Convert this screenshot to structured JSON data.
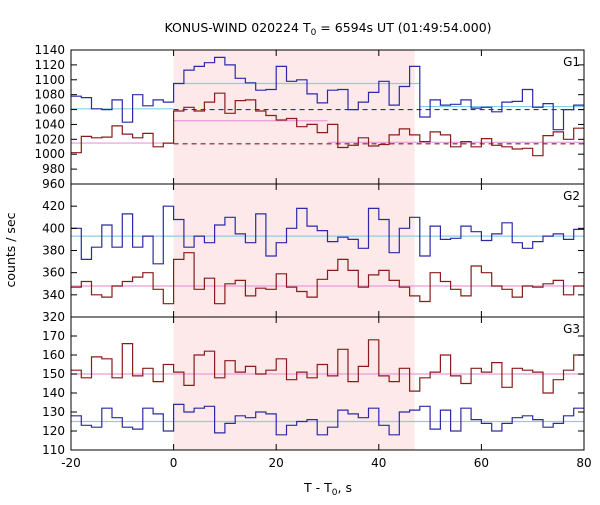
{
  "chart_data": {
    "type": "line",
    "title_parts": [
      "KONUS-WIND 020224 T",
      "0",
      " = 6594s UT (01:49:54.000)"
    ],
    "xlabel_parts": [
      "T - T",
      "0",
      ", s"
    ],
    "ylabel": "counts / sec",
    "xlim": [
      -20,
      80
    ],
    "xticks": [
      "-20",
      "0",
      "20",
      "40",
      "60",
      "80"
    ],
    "shaded_interval": [
      0,
      47
    ],
    "colors": {
      "shade": "#fde9ea",
      "blue": "#2a2aa8",
      "red": "#8b1a1a",
      "cyan": "#86cfe8",
      "pink": "#e89ad8"
    },
    "panels": [
      {
        "label": "G1",
        "ylim": [
          960,
          1140
        ],
        "yticks": [
          960,
          980,
          1000,
          1020,
          1040,
          1060,
          1080,
          1100,
          1120,
          1140
        ],
        "bin_edges": [
          -20,
          -18,
          -16,
          -14,
          -12,
          -10,
          -8,
          -6,
          -4,
          -2,
          0,
          2,
          4,
          6,
          8,
          10,
          12,
          14,
          16,
          18,
          20,
          22,
          24,
          26,
          28,
          30,
          32,
          34,
          36,
          38,
          40,
          42,
          44,
          46,
          48,
          50,
          52,
          54,
          56,
          58,
          60,
          62,
          64,
          66,
          68,
          70,
          72,
          74,
          76,
          78,
          80
        ],
        "series": [
          {
            "color_key": "blue",
            "values": [
              1078,
              1076,
              1061,
              1060,
              1073,
              1043,
              1080,
              1065,
              1073,
              1070,
              1095,
              1113,
              1118,
              1123,
              1130,
              1120,
              1102,
              1096,
              1086,
              1087,
              1118,
              1098,
              1100,
              1081,
              1069,
              1086,
              1087,
              1060,
              1070,
              1083,
              1098,
              1066,
              1091,
              1118,
              1050,
              1073,
              1066,
              1067,
              1073,
              1062,
              1063,
              1057,
              1070,
              1071,
              1087,
              1063,
              1068,
              1033,
              1060,
              1066
            ]
          },
          {
            "color_key": "red",
            "values": [
              1002,
              1024,
              1022,
              1023,
              1038,
              1027,
              1022,
              1028,
              1010,
              1015,
              1058,
              1063,
              1058,
              1070,
              1082,
              1055,
              1072,
              1073,
              1058,
              1052,
              1046,
              1048,
              1037,
              1040,
              1029,
              1040,
              1009,
              1012,
              1022,
              1011,
              1013,
              1026,
              1034,
              1026,
              1017,
              1030,
              1026,
              1010,
              1017,
              1010,
              1021,
              1012,
              1010,
              1007,
              1008,
              998,
              1025,
              1030,
              1020,
              1035
            ]
          }
        ],
        "means": [
          {
            "color_key": "cyan",
            "style": "solid",
            "x_range": [
              -20,
              0
            ],
            "y": 1061
          },
          {
            "color_key": "cyan",
            "style": "solid",
            "x_range": [
              0,
              48
            ],
            "y": 1095
          },
          {
            "color_key": "cyan",
            "style": "solid",
            "x_range": [
              48,
              80
            ],
            "y": 1064
          },
          {
            "color_key": "pink",
            "style": "solid",
            "x_range": [
              -20,
              0
            ],
            "y": 1015
          },
          {
            "color_key": "pink",
            "style": "solid",
            "x_range": [
              0,
              30
            ],
            "y": 1045
          },
          {
            "color_key": "pink",
            "style": "solid",
            "x_range": [
              30,
              80
            ],
            "y": 1016
          },
          {
            "color_key": "blue",
            "style": "dashed",
            "x_range": [
              0,
              80
            ],
            "y": 1060
          },
          {
            "color_key": "red",
            "style": "dashed",
            "x_range": [
              0,
              80
            ],
            "y": 1014
          }
        ]
      },
      {
        "label": "G2",
        "ylim": [
          320,
          440
        ],
        "yticks": [
          320,
          340,
          360,
          380,
          400,
          420
        ],
        "bin_edges": [
          -20,
          -18,
          -16,
          -14,
          -12,
          -10,
          -8,
          -6,
          -4,
          -2,
          0,
          2,
          4,
          6,
          8,
          10,
          12,
          14,
          16,
          18,
          20,
          22,
          24,
          26,
          28,
          30,
          32,
          34,
          36,
          38,
          40,
          42,
          44,
          46,
          48,
          50,
          52,
          54,
          56,
          58,
          60,
          62,
          64,
          66,
          68,
          70,
          72,
          74,
          76,
          78,
          80
        ],
        "series": [
          {
            "color_key": "blue",
            "values": [
              400,
              372,
              383,
              403,
              383,
              413,
              383,
              393,
              368,
              420,
              408,
              383,
              393,
              387,
              403,
              410,
              395,
              387,
              413,
              375,
              387,
              400,
              418,
              402,
              398,
              388,
              392,
              390,
              382,
              418,
              408,
              378,
              400,
              410,
              375,
              402,
              390,
              391,
              402,
              397,
              389,
              395,
              405,
              387,
              382,
              388,
              393,
              395,
              390,
              399
            ]
          },
          {
            "color_key": "red",
            "values": [
              347,
              352,
              340,
              338,
              348,
              352,
              356,
              360,
              345,
              332,
              372,
              378,
              345,
              355,
              332,
              350,
              353,
              339,
              346,
              345,
              359,
              347,
              343,
              338,
              354,
              362,
              372,
              362,
              347,
              358,
              362,
              353,
              347,
              339,
              334,
              360,
              352,
              345,
              339,
              366,
              360,
              348,
              345,
              338,
              348,
              347,
              350,
              353,
              340,
              348
            ]
          }
        ],
        "means": [
          {
            "color_key": "cyan",
            "style": "solid",
            "x_range": [
              -20,
              80
            ],
            "y": 393
          },
          {
            "color_key": "pink",
            "style": "solid",
            "x_range": [
              -20,
              80
            ],
            "y": 348
          }
        ]
      },
      {
        "label": "G3",
        "ylim": [
          110,
          180
        ],
        "yticks": [
          110,
          120,
          130,
          140,
          150,
          160,
          170
        ],
        "bin_edges": [
          -20,
          -18,
          -16,
          -14,
          -12,
          -10,
          -8,
          -6,
          -4,
          -2,
          0,
          2,
          4,
          6,
          8,
          10,
          12,
          14,
          16,
          18,
          20,
          22,
          24,
          26,
          28,
          30,
          32,
          34,
          36,
          38,
          40,
          42,
          44,
          46,
          48,
          50,
          52,
          54,
          56,
          58,
          60,
          62,
          64,
          66,
          68,
          70,
          72,
          74,
          76,
          78,
          80
        ],
        "series": [
          {
            "color_key": "blue",
            "values": [
              128,
              123,
              122,
              132,
              127,
              122,
              121,
              132,
              129,
              120,
              134,
              130,
              132,
              133,
              119,
              124,
              128,
              127,
              130,
              129,
              118,
              123,
              125,
              126,
              118,
              122,
              131,
              129,
              127,
              132,
              123,
              118,
              130,
              131,
              133,
              121,
              131,
              120,
              132,
              126,
              124,
              120,
              124,
              127,
              128,
              126,
              122,
              124,
              128,
              132
            ]
          },
          {
            "color_key": "red",
            "values": [
              152,
              148,
              159,
              158,
              148,
              166,
              149,
              153,
              146,
              155,
              151,
              144,
              160,
              162,
              148,
              157,
              151,
              154,
              150,
              152,
              158,
              147,
              151,
              148,
              155,
              149,
              163,
              146,
              154,
              168,
              149,
              146,
              153,
              141,
              148,
              151,
              160,
              149,
              145,
              153,
              151,
              156,
              143,
              153,
              152,
              151,
              140,
              147,
              152,
              160
            ]
          }
        ],
        "means": [
          {
            "color_key": "cyan",
            "style": "solid",
            "x_range": [
              -20,
              80
            ],
            "y": 125
          },
          {
            "color_key": "pink",
            "style": "solid",
            "x_range": [
              -20,
              80
            ],
            "y": 150
          }
        ]
      }
    ]
  }
}
